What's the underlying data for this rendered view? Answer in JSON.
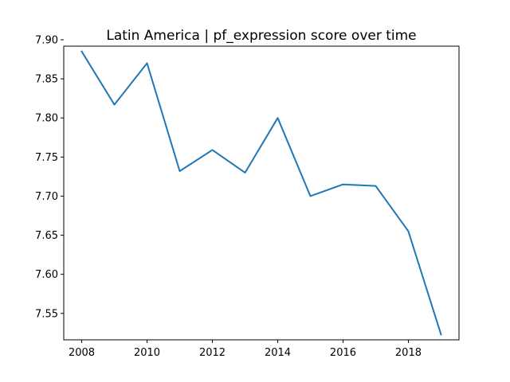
{
  "chart_data": {
    "type": "line",
    "title": "Latin America | pf_expression score over time",
    "xlabel": "",
    "ylabel": "",
    "x": [
      2008,
      2009,
      2010,
      2011,
      2012,
      2013,
      2014,
      2015,
      2016,
      2017,
      2018,
      2019
    ],
    "series": [
      {
        "name": "pf_expression",
        "values": [
          7.885,
          7.817,
          7.87,
          7.732,
          7.759,
          7.73,
          7.8,
          7.7,
          7.715,
          7.713,
          7.655,
          7.523
        ]
      }
    ],
    "xlim": [
      2007.45,
      2019.55
    ],
    "ylim": [
      7.5162,
      7.8918
    ],
    "xticks": [
      2008,
      2010,
      2012,
      2014,
      2016,
      2018
    ],
    "xtick_labels": [
      "2008",
      "2010",
      "2012",
      "2014",
      "2016",
      "2018"
    ],
    "yticks": [
      7.55,
      7.6,
      7.65,
      7.7,
      7.75,
      7.8,
      7.85,
      7.9
    ],
    "ytick_labels": [
      "7.55",
      "7.60",
      "7.65",
      "7.70",
      "7.75",
      "7.80",
      "7.85",
      "7.90"
    ],
    "grid": false,
    "line_color": "#1f77b4",
    "axis_color": "#000000"
  }
}
